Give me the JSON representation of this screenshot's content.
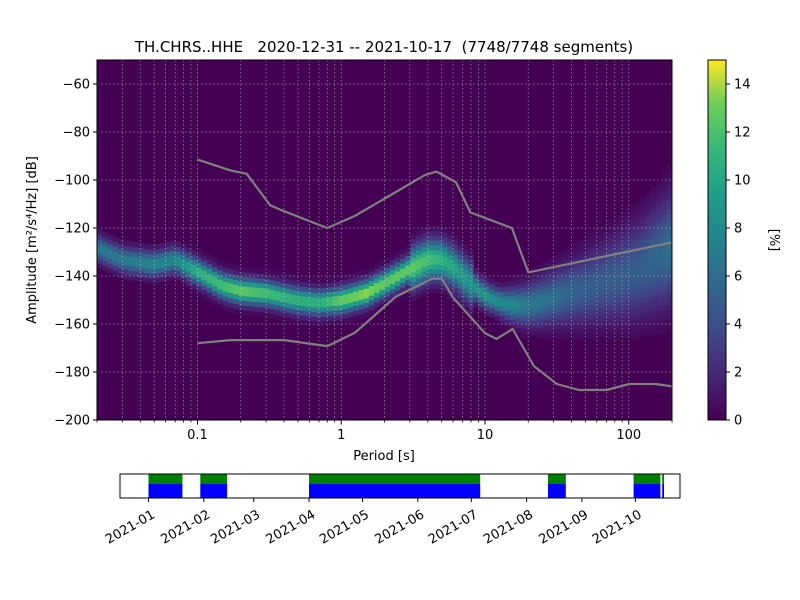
{
  "chart_data": [
    {
      "type": "heatmap",
      "title": "TH.CHRS..HHE   2020-12-31 -- 2021-10-17  (7748/7748 segments)",
      "xlabel": "Period [s]",
      "ylabel": "Amplitude [m²/s⁴/Hz] [dB]",
      "x_scale": "log",
      "xlim": [
        0.02,
        200
      ],
      "ylim": [
        -200,
        -50
      ],
      "x_ticks": [
        0.1,
        1,
        10,
        100
      ],
      "x_tick_labels": [
        "0.1",
        "1",
        "10",
        "100"
      ],
      "y_ticks": [
        -60,
        -80,
        -100,
        -120,
        -140,
        -160,
        -180,
        -200
      ],
      "grid": true,
      "colormap": "viridis",
      "colorbar": {
        "label": "[%]",
        "min": 0,
        "max": 15,
        "ticks": [
          0,
          2,
          4,
          6,
          8,
          10,
          12,
          14
        ]
      },
      "density_ridge": {
        "name": "PSD mode",
        "x": [
          0.02,
          0.03,
          0.05,
          0.07,
          0.1,
          0.15,
          0.2,
          0.3,
          0.5,
          0.7,
          1,
          1.5,
          2,
          3,
          4,
          5,
          6,
          8,
          10,
          13,
          16,
          20,
          30,
          50,
          80,
          120,
          200
        ],
        "y": [
          -128,
          -133,
          -135,
          -133,
          -138,
          -144,
          -146,
          -147,
          -150,
          -151,
          -150,
          -147,
          -143,
          -137,
          -133,
          -133,
          -136,
          -143,
          -148,
          -151,
          -152,
          -152,
          -149,
          -145,
          -141,
          -137,
          -128
        ],
        "peak_percent": [
          7,
          7,
          8,
          8,
          11,
          12,
          13,
          12,
          11,
          11,
          13,
          14,
          13,
          13,
          12,
          11,
          10,
          9,
          9,
          8,
          8,
          7,
          6,
          5,
          5,
          5,
          6
        ]
      },
      "series": [
        {
          "name": "NHNM",
          "x": [
            0.1,
            0.17,
            0.22,
            0.32,
            0.4,
            0.8,
            1.24,
            2.4,
            3.8,
            4.6,
            6.3,
            7.9,
            15.4,
            20,
            200
          ],
          "y": [
            -91.5,
            -96,
            -97.4,
            -110.5,
            -113,
            -120,
            -115,
            -105,
            -98,
            -96.5,
            -101,
            -113.5,
            -120,
            -138.5,
            -126
          ]
        },
        {
          "name": "NLNM",
          "x": [
            0.1,
            0.17,
            0.4,
            0.8,
            1.24,
            2.4,
            4.3,
            5,
            6,
            10,
            12,
            15.6,
            21.9,
            31.6,
            45,
            70,
            101,
            154,
            200
          ],
          "y": [
            -168,
            -166.7,
            -166.7,
            -169.2,
            -163.7,
            -148.6,
            -141.1,
            -141.1,
            -149,
            -163.8,
            -166.2,
            -162.1,
            -177.5,
            -185,
            -187.5,
            -187.5,
            -185,
            -185,
            -186
          ]
        }
      ]
    },
    {
      "type": "timeline",
      "x_tick_labels": [
        "2021-01",
        "2021-02",
        "2021-03",
        "2021-04",
        "2021-05",
        "2021-06",
        "2021-07",
        "2021-08",
        "2021-09",
        "2021-10"
      ],
      "xlim": [
        "2020-12-16",
        "2021-10-26"
      ],
      "tracks": [
        {
          "name": "data",
          "color": "#008000",
          "intervals": [
            [
              "2021-01-01",
              "2021-01-20"
            ],
            [
              "2021-01-30",
              "2021-02-14"
            ],
            [
              "2021-04-01",
              "2021-07-06"
            ],
            [
              "2021-08-13",
              "2021-08-23"
            ],
            [
              "2021-09-30",
              "2021-10-15"
            ],
            [
              "2021-10-16",
              "2021-10-17"
            ]
          ]
        },
        {
          "name": "segments",
          "color": "#0000ff",
          "intervals": [
            [
              "2021-01-01",
              "2021-01-20"
            ],
            [
              "2021-01-30",
              "2021-02-14"
            ],
            [
              "2021-04-01",
              "2021-07-06"
            ],
            [
              "2021-08-13",
              "2021-08-23"
            ],
            [
              "2021-09-30",
              "2021-10-15"
            ],
            [
              "2021-10-16",
              "2021-10-17"
            ]
          ]
        }
      ]
    }
  ]
}
